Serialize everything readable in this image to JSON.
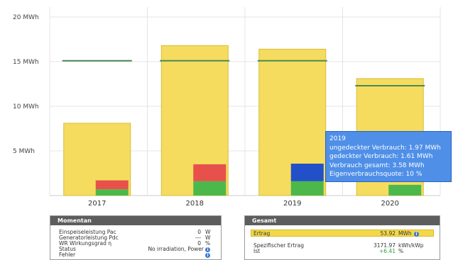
{
  "chart_data": {
    "type": "bar",
    "categories": [
      "2017",
      "2018",
      "2019",
      "2020"
    ],
    "ylim": [
      0,
      20
    ],
    "yticks": [
      {
        "value": 20,
        "label": "20 MWh"
      },
      {
        "value": 15,
        "label": "15 MWh"
      },
      {
        "value": 10,
        "label": "10 MWh"
      },
      {
        "value": 5,
        "label": "5 MWh"
      }
    ],
    "series": [
      {
        "values": [
          8.1,
          16.8,
          16.4,
          13.1
        ],
        "color": "#f5dc5e"
      },
      {
        "values": [
          0.7,
          1.6,
          1.6,
          1.2
        ],
        "color": "#4cb84c"
      },
      {
        "values": [
          1.0,
          1.9,
          0,
          0
        ],
        "color": "#e8504c"
      },
      {
        "values": [
          0,
          0,
          1.97,
          0
        ],
        "color": "#2250c8"
      }
    ],
    "reference_lines": [
      15.1,
      15.1,
      15.1,
      12.3
    ],
    "reference_line_color": "#4a8a55",
    "grid": true
  },
  "tooltip": {
    "year": "2019",
    "line1": "ungedeckter Verbrauch: 1.97 MWh",
    "line2": "gedeckter Verbrauch: 1.61 MWh",
    "line3": "Verbrauch gesamt: 3.58 MWh",
    "line4": "Eigenverbrauchsquote: 10 %"
  },
  "momentan": {
    "title": "Momentan",
    "rows": [
      {
        "label": "Einspeiseleistung Pac",
        "value": "0",
        "unit": "W"
      },
      {
        "label": "Generatorleistung Pdc",
        "value": "---",
        "unit": "W"
      },
      {
        "label": "WR Wirkungsgrad η",
        "value": "0",
        "unit": "%"
      },
      {
        "label": "Status",
        "value": "No irradiation, Power"
      },
      {
        "label": "Fehler",
        "value": ""
      }
    ]
  },
  "gesamt": {
    "title": "Gesamt",
    "ertrag_label": "Ertrag",
    "ertrag_value": "53.92",
    "ertrag_unit": "MWh",
    "spez_label": "Spezifischer Ertrag",
    "spez_value": "3171.97",
    "spez_unit": "kWh/kWp",
    "ist_label": "Ist",
    "ist_value": "+6.41",
    "ist_unit": "%"
  },
  "icons": {
    "info": "info-icon"
  }
}
